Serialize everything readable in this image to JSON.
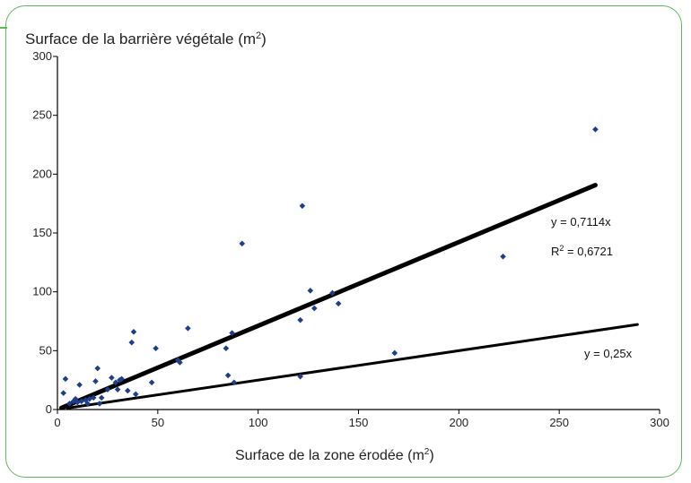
{
  "chart_data": {
    "type": "scatter",
    "title": "",
    "ylabel": "Surface de la barrière végétale (m",
    "ylabel_sup": "2",
    "ylabel_close": ")",
    "xlabel": "Surface de la zone érodée (m",
    "xlabel_sup": "2",
    "xlabel_close": ")",
    "xlim": [
      0,
      300
    ],
    "ylim": [
      0,
      300
    ],
    "x_ticks": [
      "0",
      "50",
      "100",
      "150",
      "200",
      "250",
      "300"
    ],
    "y_ticks": [
      "0",
      "50",
      "100",
      "150",
      "200",
      "250",
      "300"
    ],
    "grid": false,
    "points": {
      "x": [
        3,
        4,
        6,
        8,
        9,
        10,
        11,
        12,
        14,
        15,
        16,
        18,
        19,
        20,
        21,
        22,
        25,
        27,
        29,
        30,
        31,
        32,
        35,
        37,
        38,
        39,
        47,
        49,
        60,
        61,
        65,
        84,
        85,
        87,
        88,
        92,
        121,
        121,
        122,
        126,
        128,
        137,
        140,
        168,
        222,
        268
      ],
      "y": [
        14,
        26,
        5,
        7,
        9,
        6,
        21,
        7,
        8,
        5,
        9,
        10,
        24,
        35,
        5,
        10,
        17,
        27,
        23,
        17,
        25,
        26,
        16,
        57,
        66,
        13,
        23,
        52,
        42,
        40,
        69,
        52,
        29,
        65,
        23,
        141,
        28,
        76,
        173,
        101,
        86,
        99,
        90,
        48,
        130,
        238
      ]
    },
    "series_color": "#1f3e8a",
    "lines": [
      {
        "slope": 0.7114,
        "x_range": [
          2,
          268
        ],
        "equation": "y = 0,7114x",
        "r2_label": "R",
        "r2_sup": "2",
        "r2_value": " = 0,6721",
        "stroke": 5
      },
      {
        "slope": 0.25,
        "x_range": [
          5,
          289
        ],
        "equation": "y = 0,25x",
        "stroke": 3
      }
    ]
  },
  "colors": {
    "frame": "#5fb85a",
    "axis": "#000000",
    "point": "#1f3e8a"
  }
}
